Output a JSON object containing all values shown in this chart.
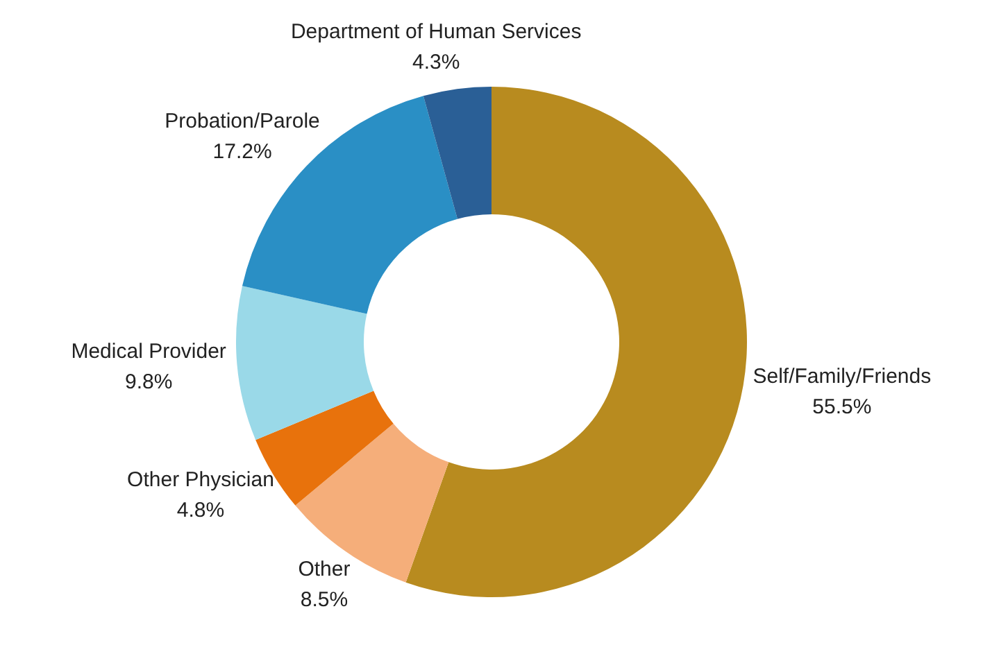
{
  "chart_data": {
    "type": "donut",
    "categories": [
      "Self/Family/Friends",
      "Other",
      "Other Physician",
      "Medical Provider",
      "Probation/Parole",
      "Department of Human Services"
    ],
    "values": [
      55.5,
      8.5,
      4.8,
      9.8,
      17.2,
      4.3
    ],
    "value_labels": [
      "55.5%",
      "8.5%",
      "4.8%",
      "9.8%",
      "17.2%",
      "4.3%"
    ],
    "colors": [
      "#b88b1f",
      "#f5ae7a",
      "#e8720c",
      "#9ad9e8",
      "#2a8fc5",
      "#2a5f96"
    ],
    "legend": false
  }
}
